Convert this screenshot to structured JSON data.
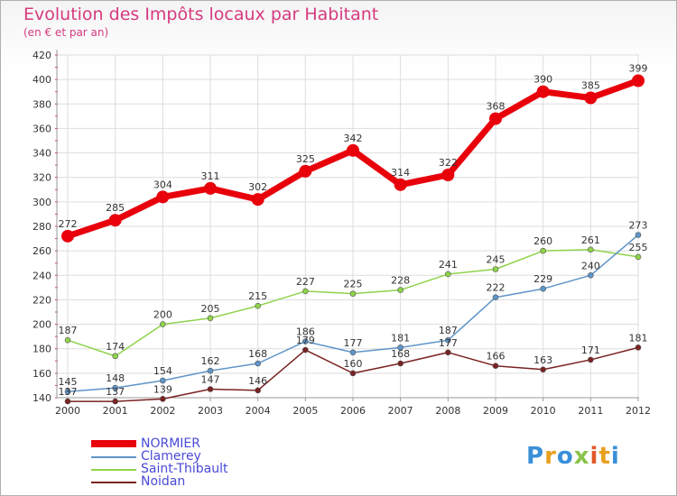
{
  "header": {
    "title": "Evolution des Impôts locaux par Habitant",
    "subtitle": "(en € et par an)"
  },
  "logo": {
    "text": "Proxiti"
  },
  "chart_data": {
    "type": "line",
    "title": "Evolution des Impôts locaux par Habitant",
    "subtitle": "(en € et par an)",
    "xlabel": "",
    "ylabel": "",
    "x": [
      "2000",
      "2001",
      "2002",
      "2003",
      "2004",
      "2005",
      "2006",
      "2007",
      "2008",
      "2009",
      "2010",
      "2011",
      "2012"
    ],
    "ylim": [
      140,
      420
    ],
    "yticks": [
      140,
      160,
      180,
      200,
      220,
      240,
      260,
      280,
      300,
      320,
      340,
      360,
      380,
      400,
      420
    ],
    "grid": true,
    "legend_position": "bottom-left",
    "series": [
      {
        "name": "NORMIER",
        "color": "#e8000b",
        "width": 7,
        "marker": 7,
        "values": [
          272,
          285,
          304,
          311,
          302,
          325,
          342,
          314,
          322,
          368,
          390,
          385,
          399
        ],
        "labels": [
          "272",
          "285",
          "304",
          "311",
          "302",
          "325",
          "342",
          "314",
          "322",
          "368",
          "390",
          "385",
          "399"
        ]
      },
      {
        "name": "Clamerey",
        "color": "#5e95c8",
        "width": 1.5,
        "marker": 3,
        "values": [
          145,
          148,
          154,
          162,
          168,
          186,
          177,
          181,
          187,
          222,
          229,
          240,
          273
        ],
        "labels": [
          "145",
          "148",
          "154",
          "162",
          "168",
          "186",
          "177",
          "181",
          "187",
          "222",
          "229",
          "240",
          "273"
        ]
      },
      {
        "name": "Saint-Thibault",
        "color": "#8fd34a",
        "width": 1.5,
        "marker": 3,
        "values": [
          187,
          174,
          200,
          205,
          215,
          227,
          225,
          228,
          241,
          245,
          260,
          261,
          255
        ],
        "labels": [
          "187",
          "174",
          "200",
          "205",
          "215",
          "227",
          "225",
          "228",
          "241",
          "245",
          "260",
          "261",
          "255"
        ]
      },
      {
        "name": "Noidan",
        "color": "#7a2222",
        "width": 1.5,
        "marker": 3,
        "values": [
          137,
          137,
          139,
          147,
          146,
          179,
          160,
          168,
          177,
          166,
          163,
          171,
          181
        ],
        "labels": [
          "137",
          "137",
          "139",
          "147",
          "146",
          "179",
          "160",
          "168",
          "177",
          "166",
          "163",
          "171",
          "181"
        ]
      }
    ]
  }
}
